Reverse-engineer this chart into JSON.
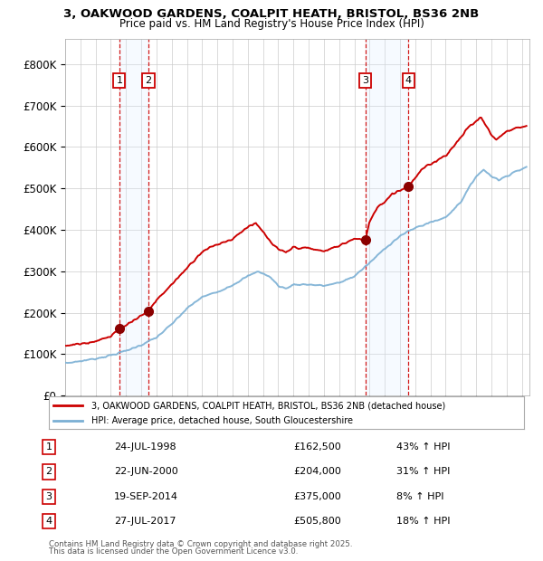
{
  "title_line1": "3, OAKWOOD GARDENS, COALPIT HEATH, BRISTOL, BS36 2NB",
  "title_line2": "Price paid vs. HM Land Registry's House Price Index (HPI)",
  "yticks": [
    0,
    100000,
    200000,
    300000,
    400000,
    500000,
    600000,
    700000,
    800000
  ],
  "ytick_labels": [
    "£0",
    "£100K",
    "£200K",
    "£300K",
    "£400K",
    "£500K",
    "£600K",
    "£700K",
    "£800K"
  ],
  "xmin": 1995.0,
  "xmax": 2025.5,
  "ymin": 0,
  "ymax": 860000,
  "price_paid_color": "#cc0000",
  "hpi_color": "#7aafd4",
  "sale_marker_color": "#8b0000",
  "vline_color": "#cc0000",
  "vshade_color": "#ddeeff",
  "legend_label1": "3, OAKWOOD GARDENS, COALPIT HEATH, BRISTOL, BS36 2NB (detached house)",
  "legend_label2": "HPI: Average price, detached house, South Gloucestershire",
  "footer_line1": "Contains HM Land Registry data © Crown copyright and database right 2025.",
  "footer_line2": "This data is licensed under the Open Government Licence v3.0.",
  "sales": [
    {
      "num": 1,
      "date_num": 1998.56,
      "price": 162500,
      "label": "24-JUL-1998",
      "pct": "43%",
      "dir": "↑"
    },
    {
      "num": 2,
      "date_num": 2000.47,
      "price": 204000,
      "label": "22-JUN-2000",
      "pct": "31%",
      "dir": "↑"
    },
    {
      "num": 3,
      "date_num": 2014.72,
      "price": 375000,
      "label": "19-SEP-2014",
      "pct": "8%",
      "dir": "↑"
    },
    {
      "num": 4,
      "date_num": 2017.56,
      "price": 505800,
      "label": "27-JUL-2017",
      "pct": "18%",
      "dir": "↑"
    }
  ],
  "background_color": "#ffffff",
  "grid_color": "#cccccc",
  "hpi_keypoints": [
    [
      1995.0,
      78000
    ],
    [
      1996.0,
      83000
    ],
    [
      1997.0,
      89000
    ],
    [
      1998.0,
      97000
    ],
    [
      1999.0,
      108000
    ],
    [
      2000.0,
      122000
    ],
    [
      2001.0,
      140000
    ],
    [
      2002.0,
      172000
    ],
    [
      2003.0,
      210000
    ],
    [
      2004.0,
      238000
    ],
    [
      2005.0,
      250000
    ],
    [
      2006.0,
      267000
    ],
    [
      2007.0,
      288000
    ],
    [
      2007.7,
      300000
    ],
    [
      2008.5,
      285000
    ],
    [
      2009.0,
      265000
    ],
    [
      2009.5,
      258000
    ],
    [
      2010.0,
      268000
    ],
    [
      2011.0,
      268000
    ],
    [
      2012.0,
      265000
    ],
    [
      2013.0,
      272000
    ],
    [
      2014.0,
      288000
    ],
    [
      2015.0,
      320000
    ],
    [
      2016.0,
      355000
    ],
    [
      2017.0,
      385000
    ],
    [
      2018.0,
      405000
    ],
    [
      2019.0,
      418000
    ],
    [
      2020.0,
      430000
    ],
    [
      2021.0,
      468000
    ],
    [
      2022.0,
      530000
    ],
    [
      2022.5,
      545000
    ],
    [
      2023.0,
      530000
    ],
    [
      2023.5,
      520000
    ],
    [
      2024.0,
      530000
    ],
    [
      2024.5,
      540000
    ],
    [
      2025.3,
      550000
    ]
  ],
  "pp_keypoints": [
    [
      1995.0,
      120000
    ],
    [
      1996.0,
      125000
    ],
    [
      1997.0,
      132000
    ],
    [
      1998.0,
      142000
    ],
    [
      1998.56,
      162500
    ],
    [
      1999.0,
      170000
    ],
    [
      1999.5,
      182000
    ],
    [
      2000.0,
      193000
    ],
    [
      2000.47,
      204000
    ],
    [
      2001.0,
      230000
    ],
    [
      2002.0,
      268000
    ],
    [
      2003.0,
      308000
    ],
    [
      2004.0,
      348000
    ],
    [
      2005.0,
      365000
    ],
    [
      2006.0,
      378000
    ],
    [
      2007.0,
      408000
    ],
    [
      2007.5,
      415000
    ],
    [
      2008.0,
      395000
    ],
    [
      2008.5,
      370000
    ],
    [
      2009.0,
      352000
    ],
    [
      2009.5,
      345000
    ],
    [
      2010.0,
      358000
    ],
    [
      2011.0,
      355000
    ],
    [
      2012.0,
      348000
    ],
    [
      2013.0,
      362000
    ],
    [
      2014.0,
      378000
    ],
    [
      2014.72,
      375000
    ],
    [
      2015.0,
      420000
    ],
    [
      2015.5,
      455000
    ],
    [
      2016.0,
      468000
    ],
    [
      2016.5,
      488000
    ],
    [
      2017.0,
      495000
    ],
    [
      2017.56,
      505800
    ],
    [
      2018.0,
      525000
    ],
    [
      2018.5,
      548000
    ],
    [
      2019.0,
      558000
    ],
    [
      2019.5,
      570000
    ],
    [
      2020.0,
      580000
    ],
    [
      2020.5,
      600000
    ],
    [
      2021.0,
      625000
    ],
    [
      2021.5,
      648000
    ],
    [
      2022.0,
      662000
    ],
    [
      2022.3,
      672000
    ],
    [
      2022.7,
      648000
    ],
    [
      2023.0,
      630000
    ],
    [
      2023.3,
      618000
    ],
    [
      2023.7,
      628000
    ],
    [
      2024.0,
      638000
    ],
    [
      2024.5,
      645000
    ],
    [
      2025.0,
      648000
    ],
    [
      2025.3,
      650000
    ]
  ]
}
